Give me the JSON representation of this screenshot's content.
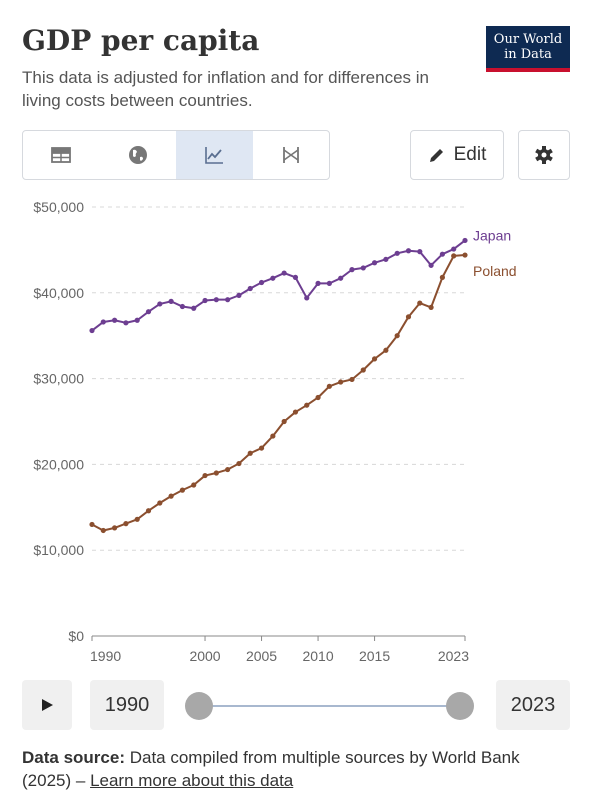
{
  "title": "GDP per capita",
  "subtitle": "This data is adjusted for inflation and for differences in living costs between countries.",
  "logo": {
    "line1": "Our World",
    "line2": "in Data"
  },
  "toolbar": {
    "tabs": [
      {
        "icon": "table-icon"
      },
      {
        "icon": "globe-icon"
      },
      {
        "icon": "line-chart-icon",
        "active": true
      },
      {
        "icon": "slope-chart-icon"
      }
    ],
    "edit_label": "Edit",
    "settings_icon": "gear-icon"
  },
  "timeline": {
    "start": "1990",
    "end": "2023",
    "play_icon": "play-icon"
  },
  "footer": {
    "source_label": "Data source:",
    "source_text": "Data compiled from multiple sources by World Bank (2025) –",
    "link_text": "Learn more about this data"
  },
  "chart_data": {
    "type": "line",
    "title": "GDP per capita",
    "ylim": [
      0,
      50000
    ],
    "xlim": [
      1990,
      2023
    ],
    "y_ticks": [
      {
        "value": 0,
        "label": "$0"
      },
      {
        "value": 10000,
        "label": "$10,000"
      },
      {
        "value": 20000,
        "label": "$20,000"
      },
      {
        "value": 30000,
        "label": "$30,000"
      },
      {
        "value": 40000,
        "label": "$40,000"
      },
      {
        "value": 50000,
        "label": "$50,000"
      }
    ],
    "x_ticks": [
      {
        "value": 1990,
        "label": "1990"
      },
      {
        "value": 2000,
        "label": "2000"
      },
      {
        "value": 2005,
        "label": "2005"
      },
      {
        "value": 2010,
        "label": "2010"
      },
      {
        "value": 2015,
        "label": "2015"
      },
      {
        "value": 2023,
        "label": "2023"
      }
    ],
    "grid": "horizontal dashed",
    "legend": "end-of-line labels",
    "x": [
      1990,
      1991,
      1992,
      1993,
      1994,
      1995,
      1996,
      1997,
      1998,
      1999,
      2000,
      2001,
      2002,
      2003,
      2004,
      2005,
      2006,
      2007,
      2008,
      2009,
      2010,
      2011,
      2012,
      2013,
      2014,
      2015,
      2016,
      2017,
      2018,
      2019,
      2020,
      2021,
      2022,
      2023
    ],
    "series": [
      {
        "name": "Japan",
        "color": "#6d3e91",
        "values": [
          35600,
          36600,
          36800,
          36500,
          36800,
          37800,
          38700,
          39000,
          38400,
          38200,
          39100,
          39200,
          39200,
          39700,
          40500,
          41200,
          41700,
          42300,
          41800,
          39400,
          41100,
          41100,
          41700,
          42700,
          42900,
          43500,
          43900,
          44600,
          44900,
          44800,
          43200,
          44500,
          45100,
          46100
        ]
      },
      {
        "name": "Poland",
        "color": "#8b4f2f",
        "values": [
          13000,
          12300,
          12600,
          13100,
          13600,
          14600,
          15500,
          16300,
          17000,
          17600,
          18700,
          19000,
          19400,
          20100,
          21300,
          21900,
          23300,
          25000,
          26100,
          26900,
          27800,
          29100,
          29600,
          29900,
          31000,
          32300,
          33300,
          35000,
          37200,
          38800,
          38300,
          41800,
          44300,
          44400
        ]
      }
    ]
  }
}
